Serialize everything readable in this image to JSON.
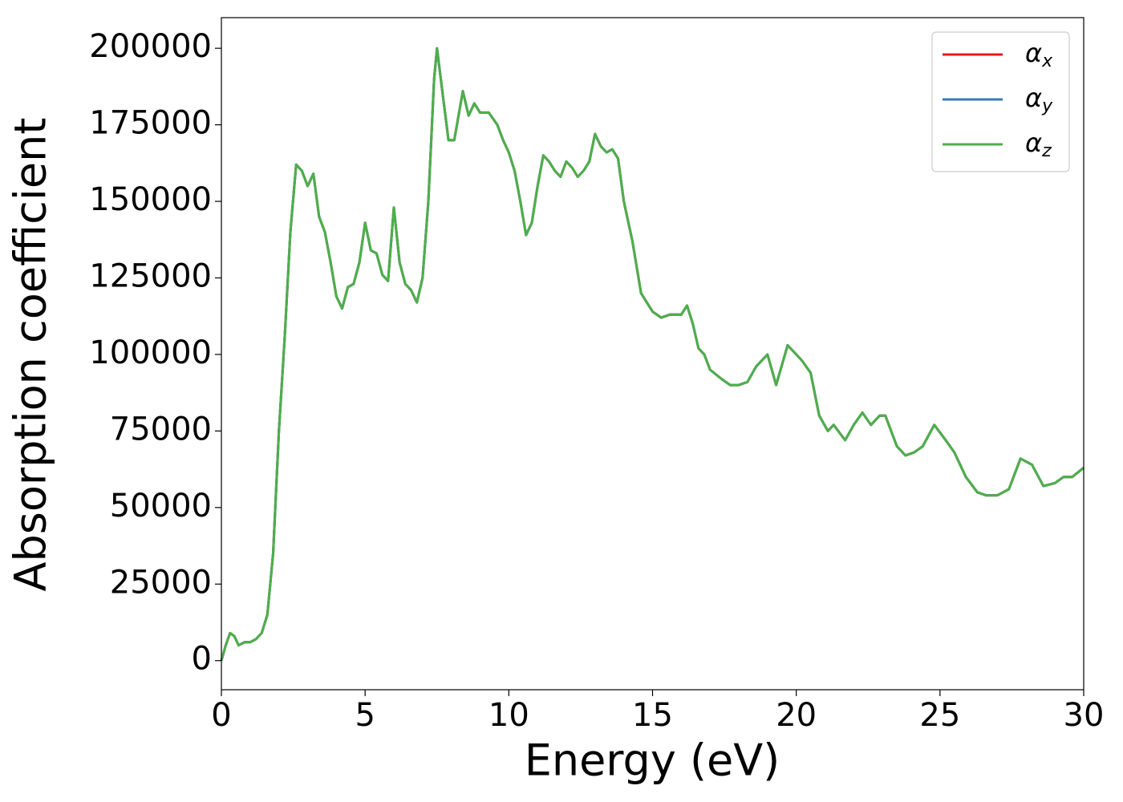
{
  "chart_data": {
    "type": "line",
    "x_label": "Energy (eV)",
    "y_label": "Absorption coefficient",
    "x": [
      0,
      0.15,
      0.3,
      0.45,
      0.6,
      0.8,
      1.0,
      1.2,
      1.4,
      1.6,
      1.8,
      2.0,
      2.2,
      2.4,
      2.6,
      2.8,
      3.0,
      3.2,
      3.4,
      3.6,
      3.8,
      4.0,
      4.2,
      4.4,
      4.6,
      4.8,
      5.0,
      5.2,
      5.4,
      5.6,
      5.8,
      6.0,
      6.2,
      6.4,
      6.6,
      6.8,
      7.0,
      7.2,
      7.4,
      7.5,
      7.7,
      7.9,
      8.1,
      8.4,
      8.6,
      8.8,
      9.0,
      9.3,
      9.6,
      9.8,
      10.0,
      10.2,
      10.4,
      10.6,
      10.8,
      11.0,
      11.2,
      11.4,
      11.6,
      11.8,
      12.0,
      12.2,
      12.4,
      12.6,
      12.8,
      13.0,
      13.2,
      13.4,
      13.6,
      13.8,
      14.0,
      14.3,
      14.6,
      15.0,
      15.3,
      15.6,
      16.0,
      16.2,
      16.4,
      16.6,
      16.8,
      17.0,
      17.4,
      17.7,
      18.0,
      18.3,
      18.6,
      19.0,
      19.3,
      19.7,
      19.9,
      20.2,
      20.5,
      20.8,
      21.1,
      21.3,
      21.7,
      22.0,
      22.3,
      22.6,
      22.9,
      23.1,
      23.5,
      23.8,
      24.1,
      24.4,
      24.8,
      25.2,
      25.5,
      25.9,
      26.3,
      26.6,
      27.0,
      27.4,
      27.8,
      28.2,
      28.6,
      29.0,
      29.3,
      29.6,
      30.0
    ],
    "series": [
      {
        "name": "αx",
        "color": "#e41a1c",
        "values": [
          0,
          5000,
          9000,
          8000,
          5000,
          6000,
          6000,
          7000,
          9000,
          15000,
          35000,
          75000,
          105000,
          140000,
          162000,
          160000,
          155000,
          159000,
          145000,
          140000,
          130000,
          119000,
          115000,
          122000,
          123000,
          130000,
          143000,
          134000,
          133000,
          126000,
          124000,
          148000,
          130000,
          123000,
          121000,
          117000,
          125000,
          150000,
          190000,
          200000,
          185000,
          170000,
          170000,
          186000,
          178000,
          182000,
          179000,
          179000,
          175000,
          170000,
          166000,
          160000,
          150000,
          139000,
          143000,
          155000,
          165000,
          163000,
          160000,
          158000,
          163000,
          161000,
          158000,
          160000,
          163000,
          172000,
          168000,
          166000,
          167000,
          164000,
          150000,
          137000,
          120000,
          114000,
          112000,
          113000,
          113000,
          116000,
          110000,
          102000,
          100000,
          95000,
          92000,
          90000,
          90000,
          91000,
          96000,
          100000,
          90000,
          103000,
          101000,
          98000,
          94000,
          80000,
          75000,
          77000,
          72000,
          77000,
          81000,
          77000,
          80000,
          80000,
          70000,
          67000,
          68000,
          70000,
          77000,
          72000,
          68000,
          60000,
          55000,
          54000,
          54000,
          56000,
          66000,
          64000,
          57000,
          58000,
          60000,
          60000,
          63000
        ]
      },
      {
        "name": "αy",
        "color": "#377eb8",
        "values": [
          0,
          5000,
          9000,
          8000,
          5000,
          6000,
          6000,
          7000,
          9000,
          15000,
          35000,
          75000,
          105000,
          140000,
          162000,
          160000,
          155000,
          159000,
          145000,
          140000,
          130000,
          119000,
          115000,
          122000,
          123000,
          130000,
          143000,
          134000,
          133000,
          126000,
          124000,
          148000,
          130000,
          123000,
          121000,
          117000,
          125000,
          150000,
          190000,
          200000,
          185000,
          170000,
          170000,
          186000,
          178000,
          182000,
          179000,
          179000,
          175000,
          170000,
          166000,
          160000,
          150000,
          139000,
          143000,
          155000,
          165000,
          163000,
          160000,
          158000,
          163000,
          161000,
          158000,
          160000,
          163000,
          172000,
          168000,
          166000,
          167000,
          164000,
          150000,
          137000,
          120000,
          114000,
          112000,
          113000,
          113000,
          116000,
          110000,
          102000,
          100000,
          95000,
          92000,
          90000,
          90000,
          91000,
          96000,
          100000,
          90000,
          103000,
          101000,
          98000,
          94000,
          80000,
          75000,
          77000,
          72000,
          77000,
          81000,
          77000,
          80000,
          80000,
          70000,
          67000,
          68000,
          70000,
          77000,
          72000,
          68000,
          60000,
          55000,
          54000,
          54000,
          56000,
          66000,
          64000,
          57000,
          58000,
          60000,
          60000,
          63000
        ]
      },
      {
        "name": "αz",
        "color": "#4daf4a",
        "values": [
          0,
          5000,
          9000,
          8000,
          5000,
          6000,
          6000,
          7000,
          9000,
          15000,
          35000,
          75000,
          105000,
          140000,
          162000,
          160000,
          155000,
          159000,
          145000,
          140000,
          130000,
          119000,
          115000,
          122000,
          123000,
          130000,
          143000,
          134000,
          133000,
          126000,
          124000,
          148000,
          130000,
          123000,
          121000,
          117000,
          125000,
          150000,
          190000,
          200000,
          185000,
          170000,
          170000,
          186000,
          178000,
          182000,
          179000,
          179000,
          175000,
          170000,
          166000,
          160000,
          150000,
          139000,
          143000,
          155000,
          165000,
          163000,
          160000,
          158000,
          163000,
          161000,
          158000,
          160000,
          163000,
          172000,
          168000,
          166000,
          167000,
          164000,
          150000,
          137000,
          120000,
          114000,
          112000,
          113000,
          113000,
          116000,
          110000,
          102000,
          100000,
          95000,
          92000,
          90000,
          90000,
          91000,
          96000,
          100000,
          90000,
          103000,
          101000,
          98000,
          94000,
          80000,
          75000,
          77000,
          72000,
          77000,
          81000,
          77000,
          80000,
          80000,
          70000,
          67000,
          68000,
          70000,
          77000,
          72000,
          68000,
          60000,
          55000,
          54000,
          54000,
          56000,
          66000,
          64000,
          57000,
          58000,
          60000,
          60000,
          63000
        ]
      }
    ],
    "xlim": [
      0,
      30
    ],
    "xticks": [
      0,
      5,
      10,
      15,
      20,
      25,
      30
    ],
    "ylim": [
      -9500,
      210000
    ],
    "yticks": [
      0,
      25000,
      50000,
      75000,
      100000,
      125000,
      150000,
      175000,
      200000
    ],
    "legend": "upper right",
    "grid": false
  }
}
